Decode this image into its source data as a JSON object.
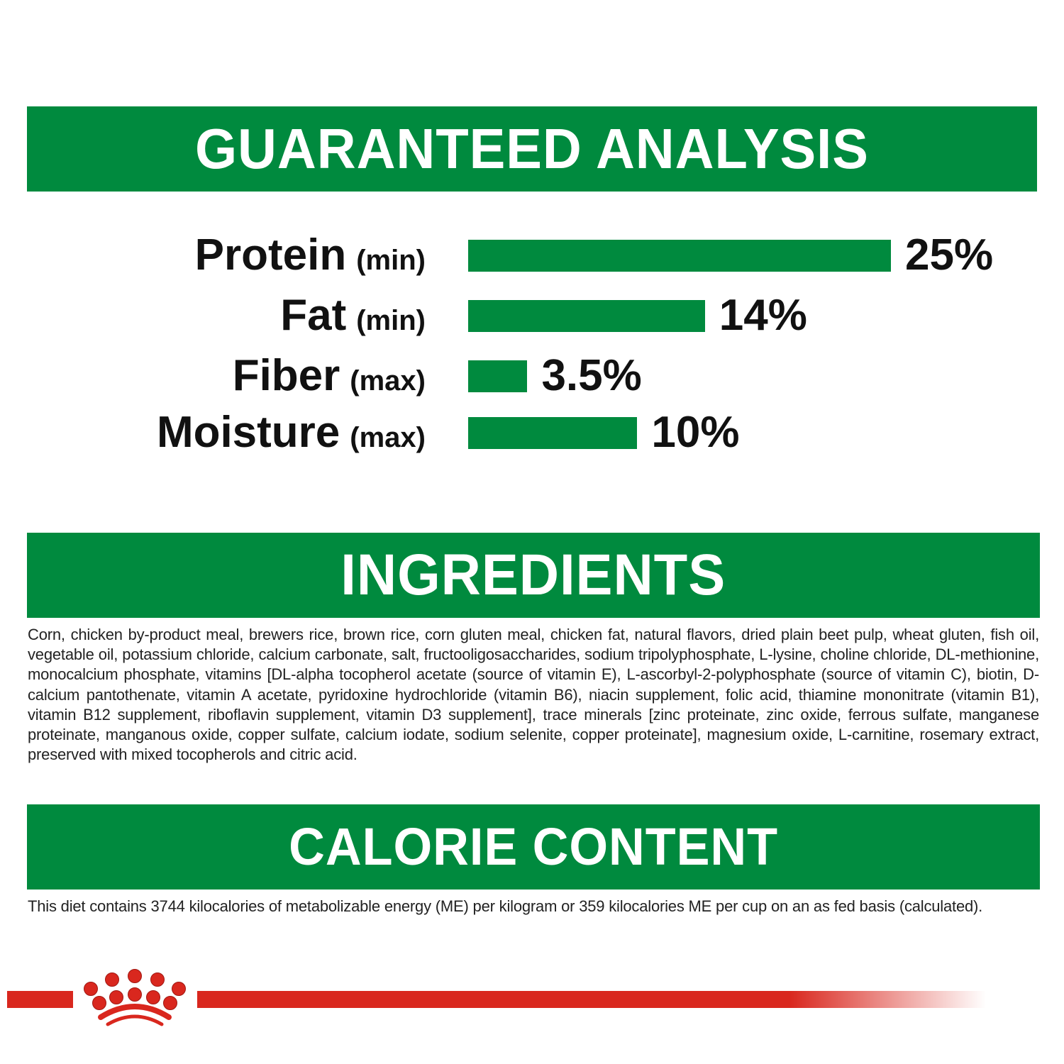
{
  "analysis": {
    "title": "GUARANTEED ANALYSIS",
    "rows": [
      {
        "name": "Protein",
        "qualifier": "(min)",
        "value": 25,
        "value_label": "25%"
      },
      {
        "name": "Fat",
        "qualifier": "(min)",
        "value": 14,
        "value_label": "14%"
      },
      {
        "name": "Fiber",
        "qualifier": "(max)",
        "value": 3.5,
        "value_label": "3.5%"
      },
      {
        "name": "Moisture",
        "qualifier": "(max)",
        "value": 10,
        "value_label": "10%"
      }
    ]
  },
  "chart_data": {
    "type": "bar",
    "orientation": "horizontal",
    "categories": [
      "Protein (min)",
      "Fat (min)",
      "Fiber (max)",
      "Moisture (max)"
    ],
    "values": [
      25,
      14,
      3.5,
      10
    ],
    "unit": "%",
    "color": "#008a3e"
  },
  "ingredients": {
    "title": "INGREDIENTS",
    "text": "Corn, chicken by-product meal, brewers rice, brown rice, corn gluten meal, chicken fat, natural flavors, dried plain beet pulp, wheat gluten, fish oil, vegetable oil, potassium chloride, calcium carbonate, salt, fructooligosaccharides, sodium tripolyphosphate, L-lysine, choline chloride, DL-methionine, monocalcium phosphate, vitamins [DL-alpha tocopherol acetate (source of vitamin E), L-ascorbyl-2-polyphosphate (source of vitamin C), biotin, D-calcium pantothenate, vitamin A acetate, pyridoxine hydrochloride (vitamin B6), niacin supplement, folic acid, thiamine mononitrate (vitamin B1), vitamin B12 supplement, riboflavin supplement, vitamin D3 supplement], trace minerals [zinc proteinate, zinc oxide, ferrous sulfate, manganese proteinate, manganous oxide, copper sulfate, calcium iodate, sodium selenite, copper proteinate], magnesium oxide, L-carnitine, rosemary extract, preserved with mixed tocopherols and citric acid."
  },
  "calorie": {
    "title": "CALORIE CONTENT",
    "text": "This diet contains 3744 kilocalories of metabolizable energy (ME) per kilogram or 359 kilocalories ME per cup on an as fed basis (calculated)."
  },
  "colors": {
    "green": "#008a3e",
    "brand_red": "#d9271e"
  },
  "logo": {
    "icon": "crown-icon"
  }
}
